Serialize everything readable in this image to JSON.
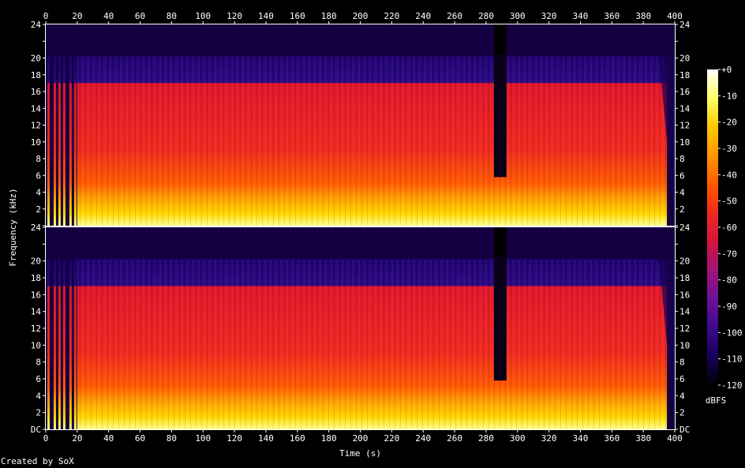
{
  "chart_data": {
    "type": "heatmap",
    "xlabel": "Time (s)",
    "ylabel": "Frequency (kHz)",
    "x_ticks": [
      0,
      20,
      40,
      60,
      80,
      100,
      120,
      140,
      160,
      180,
      200,
      220,
      240,
      260,
      280,
      300,
      320,
      340,
      360,
      380,
      400
    ],
    "y_ticks": [
      "DC",
      "2",
      "4",
      "6",
      "8",
      "10",
      "12",
      "14",
      "16",
      "18",
      "20",
      "22",
      "24"
    ],
    "xlim": [
      0,
      400
    ],
    "ylim_khz": [
      0,
      24
    ],
    "channels": 2,
    "colorbar": {
      "label": "dBFS",
      "ticks": [
        "+0",
        "-10",
        "-20",
        "-30",
        "-40",
        "-50",
        "-60",
        "-70",
        "-80",
        "-90",
        "-100",
        "-110",
        "-120"
      ],
      "range": [
        -120,
        0
      ],
      "stops": [
        "#000000",
        "#16005a",
        "#3c0a8c",
        "#6e0f99",
        "#a0147a",
        "#d2143c",
        "#f0281e",
        "#ff5a00",
        "#ff9600",
        "#ffc800",
        "#ffff64",
        "#ffffff"
      ]
    },
    "features": {
      "main_band_top_khz": 20.2,
      "silence_gap_s": [
        285,
        293
      ],
      "fade_out_end_s": 400,
      "intro_pulses_s": [
        1,
        5,
        8,
        11,
        15,
        18
      ]
    }
  },
  "footer": {
    "credit": "Created by SoX"
  }
}
